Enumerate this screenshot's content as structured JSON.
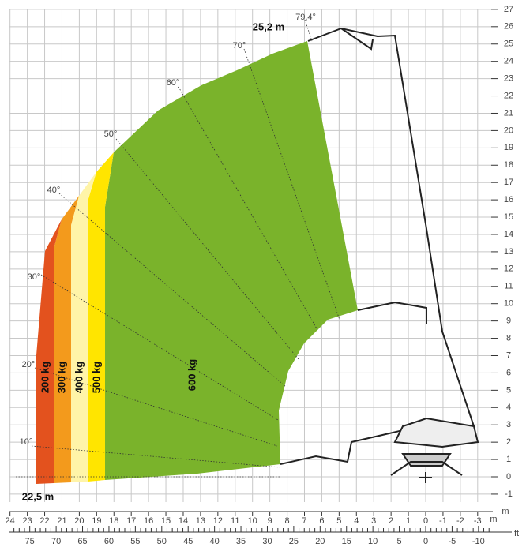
{
  "diagram": {
    "y_ticks": [
      "-1",
      "0",
      "1",
      "2",
      "3",
      "4",
      "5",
      "6",
      "7",
      "8",
      "9",
      "10",
      "11",
      "12",
      "13",
      "14",
      "15",
      "16",
      "17",
      "18",
      "19",
      "20",
      "21",
      "22",
      "23",
      "24",
      "25",
      "26",
      "27"
    ],
    "x_ticks_m": [
      "24",
      "23",
      "22",
      "21",
      "20",
      "19",
      "18",
      "17",
      "16",
      "15",
      "14",
      "13",
      "12",
      "11",
      "10",
      "9",
      "8",
      "7",
      "6",
      "5",
      "4",
      "3",
      "2",
      "1",
      "0",
      "-1",
      "-2",
      "-3"
    ],
    "x_unit_m": "m",
    "x_ticks_ft": [
      "75",
      "70",
      "65",
      "60",
      "55",
      "50",
      "45",
      "40",
      "35",
      "30",
      "25",
      "20",
      "15",
      "10",
      "5",
      "0",
      "-5",
      "-10"
    ],
    "x_unit_ft": "ft",
    "y_unit": "m",
    "max_height": "25,2 m",
    "max_reach": "22,5 m",
    "max_angle": "79,4°",
    "angles": [
      "70°",
      "60°",
      "50°",
      "40°",
      "30°",
      "20°",
      "10°"
    ],
    "loads": [
      "200 kg",
      "300 kg",
      "400 kg",
      "500 kg",
      "600 kg"
    ]
  }
}
